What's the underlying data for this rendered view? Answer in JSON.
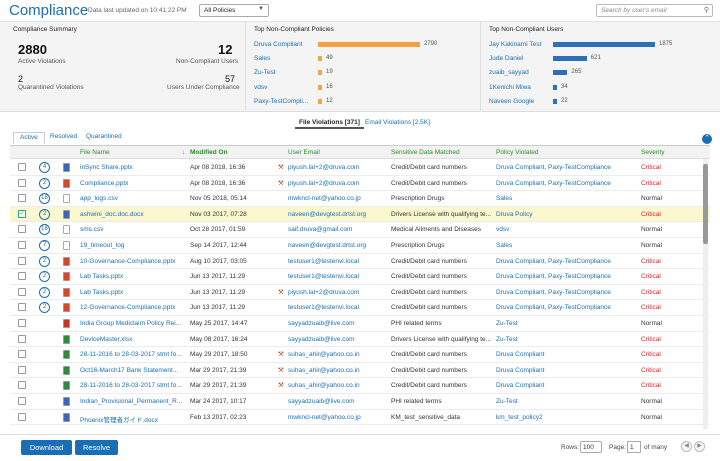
{
  "header": {
    "title": "Compliance",
    "last_updated": "Data last updated on 10:41:22 PM",
    "policy_filter": "All Policies",
    "search_placeholder": "Search by user's email"
  },
  "summary": {
    "title": "Compliance Summary",
    "active_violations_value": "2880",
    "active_violations_label": "Active Violations",
    "non_compliant_users_value": "12",
    "non_compliant_users_label": "Non-Compliant Users",
    "quarantined_value": "2",
    "quarantined_label": "Quarantined Violations",
    "under_compliance_value": "57",
    "under_compliance_label": "Users Under Compliance"
  },
  "top_policies": {
    "title": "Top Non-Compliant Policies",
    "items": [
      {
        "label": "Druva Compliant",
        "value": 2790
      },
      {
        "label": "Sales",
        "value": 49
      },
      {
        "label": "Zu-Test",
        "value": 19
      },
      {
        "label": "vdsv",
        "value": 16
      },
      {
        "label": "Paxy-TestCompli...",
        "value": 12
      }
    ],
    "bar_color": "#f4a244"
  },
  "top_users": {
    "title": "Top Non-Compliant Users",
    "items": [
      {
        "label": "Jay Kakinami Test",
        "value": 1875
      },
      {
        "label": "Jude Daniel",
        "value": 621
      },
      {
        "label": "zuaib_sayyad",
        "value": 265
      },
      {
        "label": "1Kenichi Miwa",
        "value": 34
      },
      {
        "label": "Naveen Google",
        "value": 22
      }
    ],
    "bar_color": "#2e6fb8"
  },
  "violation_tabs": {
    "file": "File Violations [371]",
    "email": "Email Violations [2.5K]"
  },
  "state_tabs": [
    "Active",
    "Resolved",
    "Quarantined"
  ],
  "table": {
    "columns": [
      "File Name",
      "Modified On",
      "User Email",
      "Sensitive Data Matched",
      "Policy Violated",
      "Severity"
    ],
    "sort_indicator": "↓",
    "rows": [
      {
        "count": "4",
        "ftype": "doc",
        "name": "inSync Share.pptx",
        "date": "Apr 08 2018, 16:36",
        "uicon": true,
        "email": "piyush.lal+2@druva.com",
        "data": "Credit/Debit card numbers",
        "policy": "Druva Compliant, Paxy-TestCompliance",
        "severity": "Critical",
        "checked": false,
        "highlight": false
      },
      {
        "count": "2",
        "ftype": "ppt",
        "name": "Compliance.pptx",
        "date": "Apr 08 2018, 16:36",
        "uicon": true,
        "email": "piyush.lal+2@druva.com",
        "data": "Credit/Debit card numbers",
        "policy": "Druva Compliant, Paxy-TestCompliance",
        "severity": "Critical",
        "checked": false,
        "highlight": false
      },
      {
        "count": "18",
        "ftype": "txt",
        "name": "app_logs.csv",
        "date": "Nov 05 2018, 05:14",
        "uicon": false,
        "email": "mwkncl-net@yahoo.co.jp",
        "data": "Prescription Drugs",
        "policy": "Sales",
        "severity": "Normal",
        "checked": false,
        "highlight": false
      },
      {
        "count": "2",
        "ftype": "doc",
        "name": "ashwini_doc.doc.docx",
        "date": "Nov 03 2017, 07:28",
        "uicon": false,
        "email": "naveen@devgtest.drtst.org",
        "data": "Drivers License with qualifying te...",
        "policy": "Druva Policy",
        "severity": "Critical",
        "checked": true,
        "highlight": true
      },
      {
        "count": "16",
        "ftype": "txt",
        "name": "sms.csv",
        "date": "Oct 28 2017, 01:59",
        "uicon": false,
        "email": "saif.druva@gmail.com",
        "data": "Medical Ailments and Diseases",
        "policy": "vdsv",
        "severity": "Normal",
        "checked": false,
        "highlight": false
      },
      {
        "count": "7",
        "ftype": "txt",
        "name": "19_timeout_log",
        "date": "Sep 14 2017, 12:44",
        "uicon": false,
        "email": "naveen@devgtest.drtst.org",
        "data": "Prescription Drugs",
        "policy": "Sales",
        "severity": "Normal",
        "checked": false,
        "highlight": false
      },
      {
        "count": "2",
        "ftype": "ppt",
        "name": "10-Governance-Compliance.pptx",
        "date": "Aug 10 2017, 03:05",
        "uicon": false,
        "email": "testuser1@testenvi.local",
        "data": "Credit/Debit card numbers",
        "policy": "Druva Compliant, Paxy-TestCompliance",
        "severity": "Critical",
        "checked": false,
        "highlight": false
      },
      {
        "count": "2",
        "ftype": "ppt",
        "name": "Lab Tasks.pptx",
        "date": "Jun 13 2017, 11:29",
        "uicon": false,
        "email": "testuser1@testenvi.local",
        "data": "Credit/Debit card numbers",
        "policy": "Druva Compliant, Paxy-TestCompliance",
        "severity": "Critical",
        "checked": false,
        "highlight": false
      },
      {
        "count": "2",
        "ftype": "ppt",
        "name": "Lab Tasks.pptx",
        "date": "Jun 13 2017, 11:29",
        "uicon": true,
        "email": "piyush.lal+2@druva.com",
        "data": "Credit/Debit card numbers",
        "policy": "Druva Compliant, Paxy-TestCompliance",
        "severity": "Critical",
        "checked": false,
        "highlight": false
      },
      {
        "count": "2",
        "ftype": "ppt",
        "name": "12-Governance-Compliance.pptx",
        "date": "Jun 13 2017, 11:29",
        "uicon": false,
        "email": "testuser1@testenvi.local",
        "data": "Credit/Debit card numbers",
        "policy": "Druva Compliant, Paxy-TestCompliance",
        "severity": "Critical",
        "checked": false,
        "highlight": false
      },
      {
        "count": "",
        "ftype": "pdf",
        "name": "India Group Mediclaim Policy Rei...",
        "date": "May 25 2017, 14:47",
        "uicon": false,
        "email": "sayyadzuaib@live.com",
        "data": "PHI related terms",
        "policy": "Zu-Test",
        "severity": "Normal",
        "checked": false,
        "highlight": false
      },
      {
        "count": "",
        "ftype": "xls",
        "name": "DeviceMaster.xlsx",
        "date": "May 08 2017, 16:24",
        "uicon": false,
        "email": "sayyadzuaib@live.com",
        "data": "Drivers License with qualifying te...",
        "policy": "Zu-Test",
        "severity": "Critical",
        "checked": false,
        "highlight": false
      },
      {
        "count": "",
        "ftype": "xls",
        "name": "28-11-2016 to 28-03-2017 stmt fo...",
        "date": "May 29 2017, 18:50",
        "uicon": true,
        "email": "suhas_ahir@yahoo.co.in",
        "data": "Credit/Debit card numbers",
        "policy": "Druva Compliant",
        "severity": "Critical",
        "checked": false,
        "highlight": false
      },
      {
        "count": "",
        "ftype": "xls",
        "name": "Oct16-March17 Bank Statement...",
        "date": "Mar 29 2017, 21:39",
        "uicon": true,
        "email": "suhas_ahir@yahoo.co.in",
        "data": "Credit/Debit card numbers",
        "policy": "Druva Compliant",
        "severity": "Critical",
        "checked": false,
        "highlight": false
      },
      {
        "count": "",
        "ftype": "xls",
        "name": "28-11-2016 to 28-03-2017 stmt fo...",
        "date": "Mar 29 2017, 21:39",
        "uicon": true,
        "email": "suhas_ahir@yahoo.co.in",
        "data": "Credit/Debit card numbers",
        "policy": "Druva Compliant",
        "severity": "Critical",
        "checked": false,
        "highlight": false
      },
      {
        "count": "",
        "ftype": "doc",
        "name": "Indian_Provisional_Permanent_R...",
        "date": "Mar 24 2017, 10:17",
        "uicon": false,
        "email": "sayyadzuaib@live.com",
        "data": "PHI related terms",
        "policy": "Zu-Test",
        "severity": "Normal",
        "checked": false,
        "highlight": false
      },
      {
        "count": "",
        "ftype": "doc",
        "name": "Phoenix管理者ガイド.docx",
        "date": "Feb 13 2017, 02:23",
        "uicon": false,
        "email": "mwkncl-net@yahoo.co.jp",
        "data": "KM_test_sensitive_data",
        "policy": "km_test_policy2",
        "severity": "Normal",
        "checked": false,
        "highlight": false
      }
    ]
  },
  "footer": {
    "download": "Download",
    "resolve": "Resolve",
    "rows_label": "Rows:",
    "rows_value": "100",
    "page_label": "Page:",
    "page_value": "1",
    "of_label": "of many"
  },
  "colors": {
    "accent": "#1a6eb5",
    "critical": "#dd2222",
    "header_green": "#2a8a2a",
    "highlight_row": "#fbf7cf"
  }
}
